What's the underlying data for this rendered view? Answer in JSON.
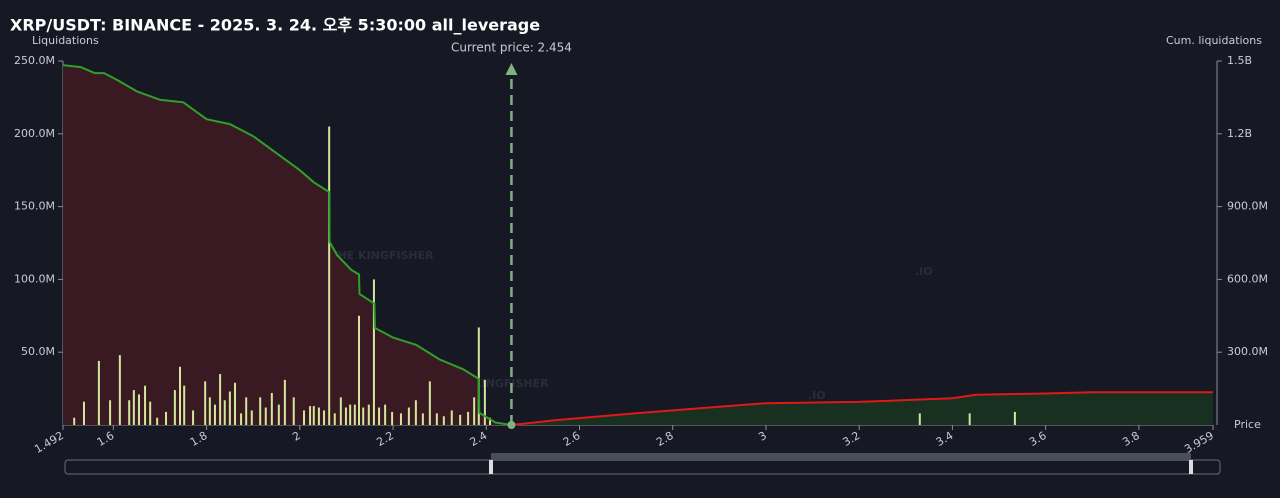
{
  "chart_data": {
    "type": "liquidation",
    "title": "XRP/USDT: BINANCE - 2025. 3. 24. 오후 5:30:00 all_leverage",
    "y_label": "Liquidations",
    "y2_label": "Cum. liquidations",
    "x_label": "Price",
    "current_price_label": "Current price: 2.454",
    "current_price": 2.454,
    "watermark": "THE KINGFISHER",
    "watermark_suffix": ".IO",
    "xlim": [
      1.492,
      3.959
    ],
    "xticks": [
      1.492,
      1.6,
      1.8,
      2,
      2.2,
      2.4,
      2.6,
      2.8,
      3,
      3.2,
      3.4,
      3.6,
      3.8,
      3.959
    ],
    "ylim": [
      0,
      250000000
    ],
    "yticks": [
      {
        "value": 50000000,
        "label": "50.0M"
      },
      {
        "value": 100000000,
        "label": "100.0M"
      },
      {
        "value": 150000000,
        "label": "150.0M"
      },
      {
        "value": 200000000,
        "label": "200.0M"
      },
      {
        "value": 250000000,
        "label": "250.0M"
      }
    ],
    "y2lim": [
      0,
      1500000000
    ],
    "y2ticks": [
      {
        "value": 300000000,
        "label": "300.0M"
      },
      {
        "value": 600000000,
        "label": "600.0M"
      },
      {
        "value": 900000000,
        "label": "900.0M"
      },
      {
        "value": 1200000000,
        "label": "1.2B"
      },
      {
        "value": 1500000000,
        "label": "1.5B"
      }
    ],
    "bars": {
      "color": "#d4e69a",
      "x": [
        1.516,
        1.537,
        1.569,
        1.593,
        1.614,
        1.634,
        1.644,
        1.655,
        1.668,
        1.679,
        1.694,
        1.713,
        1.732,
        1.743,
        1.752,
        1.771,
        1.797,
        1.807,
        1.818,
        1.829,
        1.839,
        1.85,
        1.861,
        1.874,
        1.885,
        1.897,
        1.915,
        1.927,
        1.94,
        1.955,
        1.968,
        1.987,
        2.009,
        2.022,
        2.03,
        2.041,
        2.052,
        2.063,
        2.075,
        2.088,
        2.099,
        2.108,
        2.118,
        2.127,
        2.136,
        2.148,
        2.159,
        2.17,
        2.183,
        2.198,
        2.217,
        2.234,
        2.249,
        2.264,
        2.279,
        2.294,
        2.309,
        2.326,
        2.344,
        2.361,
        2.374,
        2.384,
        2.397,
        2.408,
        3.33,
        3.437,
        3.534
      ],
      "values": [
        5000000,
        16000000,
        44000000,
        17000000,
        48000000,
        17000000,
        24000000,
        21000000,
        27000000,
        16000000,
        5000000,
        9000000,
        24000000,
        40000000,
        27000000,
        10000000,
        30000000,
        19000000,
        14000000,
        35000000,
        17000000,
        23000000,
        29000000,
        8000000,
        19000000,
        10000000,
        19000000,
        12000000,
        22000000,
        14000000,
        31000000,
        19000000,
        10000000,
        13000000,
        13000000,
        12000000,
        10000000,
        205000000,
        8000000,
        19000000,
        12000000,
        14000000,
        14000000,
        75000000,
        12000000,
        14000000,
        100000000,
        12000000,
        14000000,
        9000000,
        8000000,
        12000000,
        17000000,
        8000000,
        30000000,
        8000000,
        6000000,
        10000000,
        7000000,
        9000000,
        19000000,
        67000000,
        31000000,
        5000000,
        8000000,
        8000000,
        9000000
      ]
    },
    "series": [
      {
        "color": "#2ea12a",
        "fill": "#3a1a22",
        "axis": "y2",
        "x": [
          1.492,
          1.53,
          1.56,
          1.58,
          1.61,
          1.65,
          1.7,
          1.75,
          1.8,
          1.85,
          1.9,
          1.95,
          2,
          2.03,
          2.063,
          2.064,
          2.08,
          2.11,
          2.127,
          2.128,
          2.16,
          2.161,
          2.2,
          2.25,
          2.3,
          2.35,
          2.384,
          2.385,
          2.42,
          2.454
        ],
        "values": [
          1483000000,
          1475000000,
          1450000000,
          1450000000,
          1420000000,
          1375000000,
          1340000000,
          1330000000,
          1260000000,
          1240000000,
          1190000000,
          1120000000,
          1050000000,
          1000000000,
          960000000,
          755000000,
          700000000,
          640000000,
          620000000,
          540000000,
          500000000,
          400000000,
          360000000,
          330000000,
          270000000,
          230000000,
          190000000,
          50000000,
          10000000,
          0
        ]
      },
      {
        "color": "#e01818",
        "fill": "#17301f",
        "axis": "y2",
        "x": [
          2.454,
          2.55,
          2.7,
          2.8,
          2.9,
          3,
          3.2,
          3.4,
          3.45,
          3.6,
          3.7,
          3.959
        ],
        "values": [
          0,
          20000000,
          45000000,
          60000000,
          75000000,
          90000000,
          95000000,
          110000000,
          125000000,
          130000000,
          135000000,
          135000000
        ]
      }
    ]
  }
}
